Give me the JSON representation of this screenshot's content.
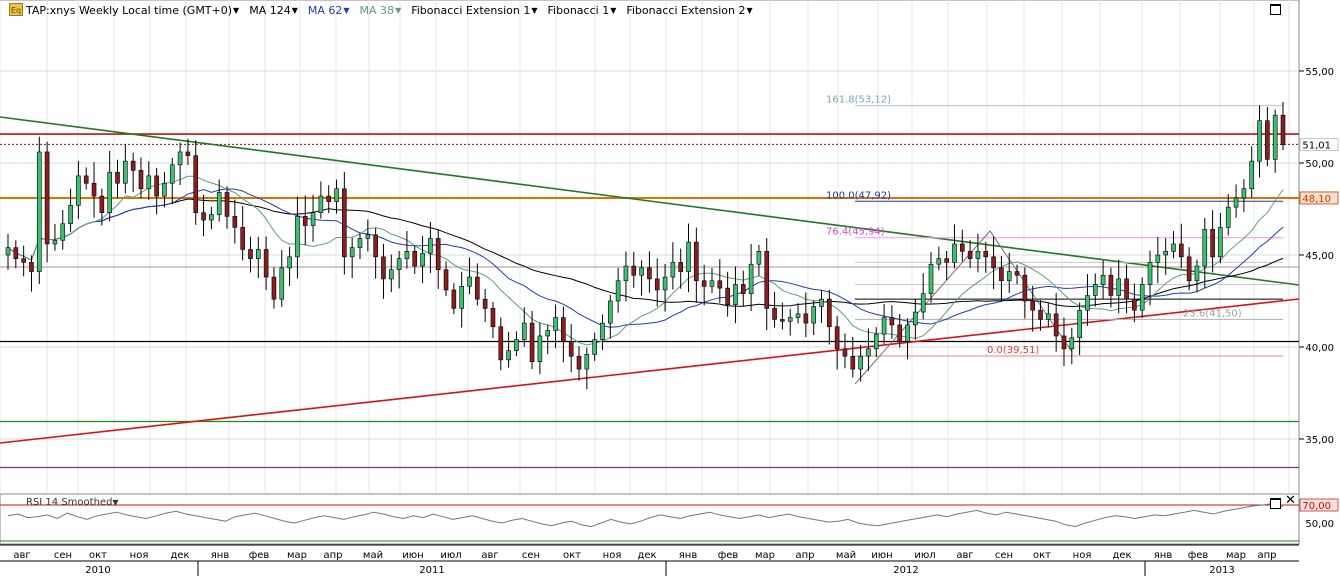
{
  "toolbar": {
    "icon_label": "Eq",
    "symbol": "TAP:xnys Weekly Local time (GMT+0)",
    "ma124": "MA 124",
    "ma62": "MA 62",
    "ma38": "MA 38",
    "fibext1": "Fibonacci Extension 1",
    "fib1": "Fibonacci 1",
    "fibext2": "Fibonacci Extension 2",
    "ma124_color": "#000000",
    "ma62_color": "#1f3fb8",
    "ma38_color": "#5aa07a"
  },
  "rsi_panel": {
    "label": "RSI 14 Smoothed",
    "level_label": "70,00",
    "tick_label": "50,00",
    "values": [
      58,
      60,
      56,
      57,
      59,
      55,
      61,
      57,
      54,
      58,
      60,
      62,
      59,
      57,
      55,
      58,
      61,
      63,
      60,
      58,
      56,
      54,
      52,
      57,
      59,
      61,
      58,
      55,
      52,
      50,
      53,
      56,
      58,
      56,
      54,
      57,
      59,
      62,
      60,
      57,
      55,
      58,
      56,
      60,
      57,
      54,
      56,
      58,
      55,
      52,
      50,
      53,
      55,
      52,
      49,
      47,
      50,
      52,
      48,
      46,
      50,
      54,
      51,
      49,
      52,
      56,
      59,
      57,
      55,
      58,
      60,
      62,
      59,
      57,
      55,
      57,
      59,
      56,
      58,
      60,
      57,
      55,
      53,
      51,
      52,
      54,
      50,
      48,
      47,
      49,
      51,
      53,
      55,
      57,
      59,
      57,
      60,
      62,
      64,
      61,
      59,
      62,
      60,
      58,
      56,
      54,
      52,
      48,
      46,
      50,
      53,
      56,
      58,
      57,
      55,
      57,
      59,
      58,
      60,
      62,
      64,
      62,
      60,
      63,
      65,
      67,
      69,
      70,
      72,
      68
    ]
  },
  "chart_data": {
    "type": "candlestick",
    "title": "TAP:xnys Weekly Local time (GMT+0)",
    "ylim": [
      32.0,
      58.8
    ],
    "y_ticks": [
      "35,00",
      "40,00",
      "45,00",
      "50,00",
      "55,00"
    ],
    "x_months": [
      "авг",
      "сен",
      "окт",
      "ноя",
      "дек",
      "янв",
      "фев",
      "мар",
      "апр",
      "май",
      "июн",
      "июл",
      "авг",
      "сен",
      "окт",
      "ноя",
      "дек",
      "янв",
      "фев",
      "мар",
      "апр",
      "май",
      "июн",
      "июл",
      "авг",
      "сен",
      "окт",
      "ноя",
      "дек",
      "янв",
      "фев",
      "мар",
      "апр"
    ],
    "x_years": [
      "2010",
      "2011",
      "2012",
      "2013"
    ],
    "price_labels": [
      {
        "text": "51,01",
        "value": 51.01,
        "color": "#000000",
        "bg": "#ffffff"
      },
      {
        "text": "48,10",
        "value": 48.1,
        "color": "#c04000",
        "bg": "#fde0cc"
      }
    ],
    "fib_labels": [
      {
        "text": "161.8(53,12)",
        "value": 53.12,
        "color": "#7aa8b8"
      },
      {
        "text": "100.0(47,92)",
        "value": 47.92,
        "color": "#1a3aa8"
      },
      {
        "text": "76.4(45,94)",
        "value": 45.94,
        "color": "#e040d0"
      },
      {
        "text": "23.6(41,50)",
        "value": 41.5,
        "color": "#a0a0a0"
      },
      {
        "text": "0.0(39,51)",
        "value": 39.51,
        "color": "#e04040"
      }
    ],
    "closes": [
      45.4,
      44.8,
      44.6,
      44.1,
      50.6,
      45.6,
      45.8,
      46.7,
      47.7,
      49.3,
      48.9,
      48.2,
      47.3,
      49.5,
      48.9,
      50.1,
      49.6,
      48.6,
      49.3,
      48.2,
      48.9,
      49.9,
      50.6,
      50.4,
      47.3,
      46.9,
      47.2,
      48.4,
      47.1,
      46.5,
      45.3,
      44.8,
      45.3,
      43.8,
      42.6,
      44.3,
      44.9,
      47.1,
      46.6,
      47.3,
      48.2,
      47.9,
      48.6,
      44.9,
      45.4,
      45.9,
      46.1,
      44.9,
      43.7,
      44.2,
      44.8,
      45.2,
      44.4,
      45.1,
      45.9,
      44.2,
      43.1,
      42.1,
      43.3,
      43.8,
      42.6,
      42.1,
      41.1,
      39.3,
      39.8,
      40.4,
      41.3,
      39.2,
      40.6,
      40.9,
      41.6,
      40.3,
      39.5,
      38.8,
      39.6,
      40.4,
      41.3,
      42.5,
      43.6,
      44.4,
      43.9,
      44.3,
      43.7,
      43.1,
      43.8,
      44.6,
      44.1,
      45.7,
      43.6,
      43.3,
      43.6,
      43.2,
      42.3,
      43.4,
      42.9,
      44.5,
      45.2,
      42.1,
      41.5,
      41.4,
      41.6,
      41.8,
      41.3,
      42.2,
      42.6,
      41.1,
      39.9,
      39.5,
      38.8,
      39.5,
      39.9,
      40.7,
      41.6,
      41.2,
      40.3,
      41.2,
      41.9,
      42.9,
      44.5,
      44.8,
      44.6,
      45.6,
      45.2,
      44.8,
      45.2,
      44.9,
      44.3,
      43.6,
      44.1,
      43.9,
      42.5,
      42.0,
      41.5,
      41.8,
      40.6,
      39.9,
      40.5,
      42.0,
      42.8,
      43.4,
      43.9,
      42.8,
      43.7,
      42.6,
      42.0,
      43.4,
      44.6,
      45.0,
      45.2,
      45.6,
      44.9,
      43.6,
      44.4,
      46.4,
      44.9,
      46.5,
      47.6,
      48.1,
      48.6,
      50.1,
      52.3,
      50.2,
      52.6,
      51.0
    ]
  }
}
